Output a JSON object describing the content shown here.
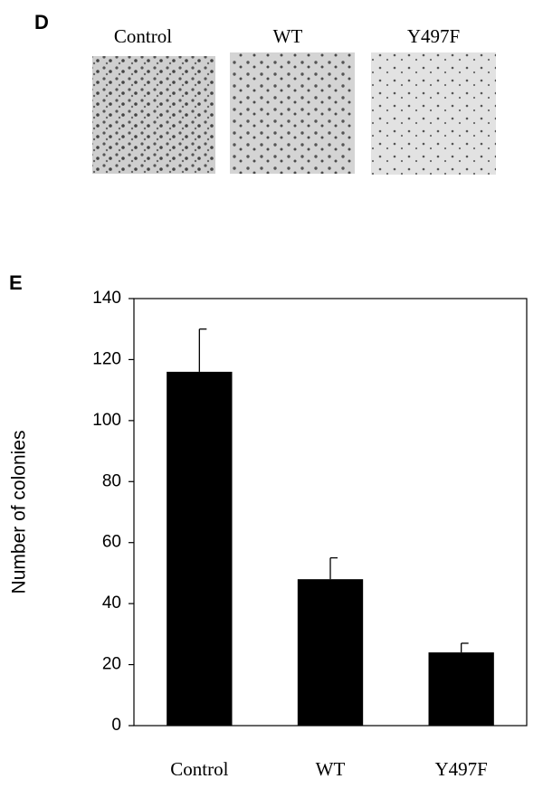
{
  "panel_d": {
    "label": "D",
    "captions": [
      "Control",
      "WT",
      "Y497F"
    ]
  },
  "chart_data": {
    "type": "bar",
    "panel_label": "E",
    "y_label": "Number of colonies",
    "categories": [
      "Control",
      "WT",
      "Y497F"
    ],
    "values": [
      116,
      48,
      24
    ],
    "errors": [
      14,
      7,
      3
    ],
    "color": "#000000",
    "ylim": [
      0,
      140
    ],
    "yticks": [
      0,
      20,
      40,
      60,
      80,
      100,
      120,
      140
    ],
    "grid": false
  }
}
